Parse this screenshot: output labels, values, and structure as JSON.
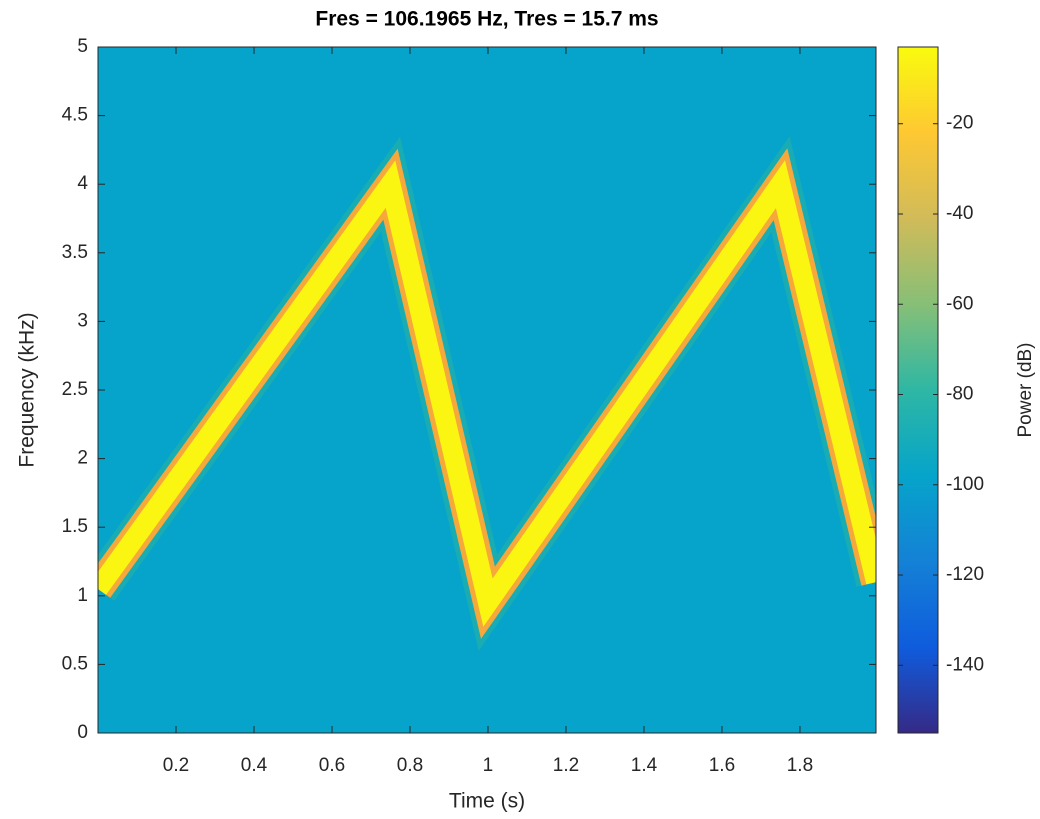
{
  "chart_data": {
    "type": "spectrogram",
    "title": "Fres = 106.1965 Hz, Tres = 15.7 ms",
    "xlabel": "Time (s)",
    "ylabel": "Frequency (kHz)",
    "colorbar_label": "Power (dB)",
    "x": [
      0,
      0.75,
      1,
      1.75,
      1.995
    ],
    "values": [
      1.05,
      4.0,
      0.95,
      4.0,
      1.1
    ],
    "ridge_power": -5,
    "background_power": -98,
    "xlim": [
      0,
      1.995
    ],
    "xticks": [
      0.2,
      0.4,
      0.6,
      0.8,
      1,
      1.2,
      1.4,
      1.6,
      1.8
    ],
    "ylim": [
      0,
      5
    ],
    "yticks": [
      0,
      0.5,
      1,
      1.5,
      2,
      2.5,
      3,
      3.5,
      4,
      4.5,
      5
    ],
    "clim": [
      -155,
      -3
    ],
    "cticks": [
      -140,
      -120,
      -100,
      -80,
      -60,
      -40,
      -20
    ],
    "colormap": [
      "#352a87",
      "#0f5cdd",
      "#1481d6",
      "#06a4ca",
      "#2eb7a4",
      "#87bf77",
      "#d1bb59",
      "#fec832",
      "#f9fb0e"
    ]
  }
}
